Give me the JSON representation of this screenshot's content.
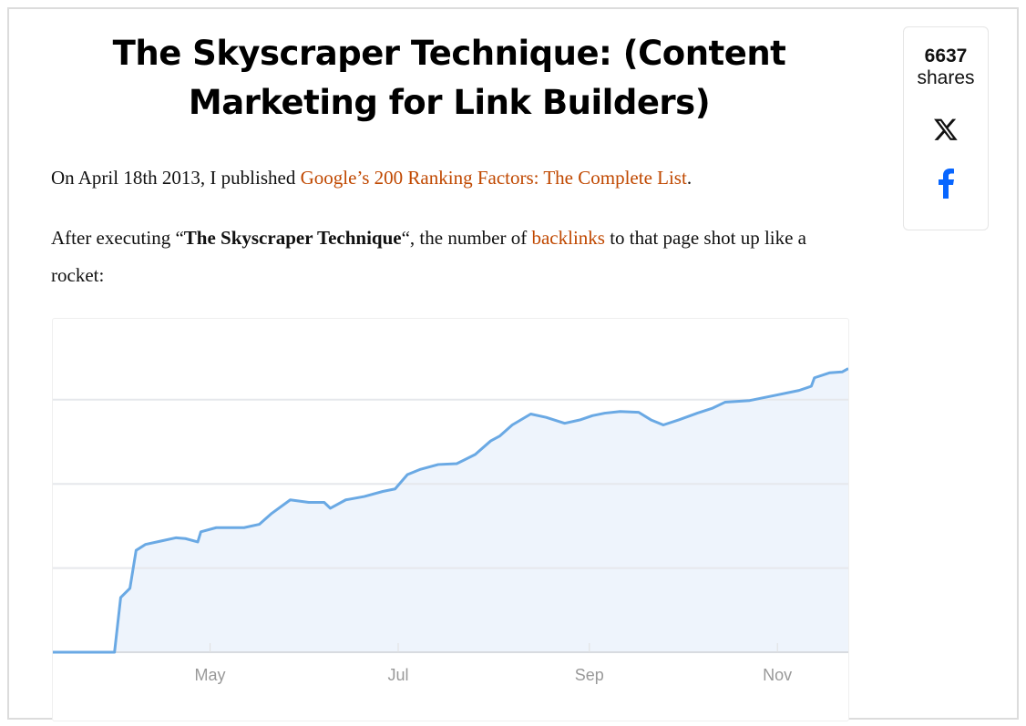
{
  "article": {
    "title": "The Skyscraper Technique: (Content Marketing for Link Builders)",
    "paragraph1": {
      "before": "On April 18th 2013, I published ",
      "link": "Google’s 200 Ranking Factors: The Complete List",
      "after": "."
    },
    "paragraph2": {
      "before": "After executing “",
      "bold": "The Skyscraper Technique",
      "middle": "“, the number of ",
      "link": "backlinks",
      "after": " to that page shot up like a rocket:"
    },
    "link_color": "#c04800"
  },
  "share_box": {
    "count": "6637",
    "label": "shares",
    "icons": [
      "x-twitter-icon",
      "facebook-icon"
    ],
    "facebook_color": "#0866ff"
  },
  "chart_data": {
    "type": "area",
    "title": "",
    "xlabel": "",
    "ylabel": "",
    "x_tick_labels": [
      "May",
      "Jul",
      "Sep",
      "Nov"
    ],
    "x_ticks": [
      "2013-05-01",
      "2013-07-01",
      "2013-09-01",
      "2013-11-01"
    ],
    "xlim": [
      "2013-03-11",
      "2013-11-24"
    ],
    "ylim": [
      0,
      3.95
    ],
    "y_gridlines": [
      1,
      2,
      3
    ],
    "y_tick_labels_shown": false,
    "grid": true,
    "line_color": "#6aa9e4",
    "fill_color": "#eef4fc",
    "series": [
      {
        "x": [
          "2013-03-11",
          "2013-03-31",
          "2013-04-02",
          "2013-04-05",
          "2013-04-07",
          "2013-04-10",
          "2013-04-15",
          "2013-04-20",
          "2013-04-23",
          "2013-04-27",
          "2013-04-28",
          "2013-05-03",
          "2013-05-08",
          "2013-05-12",
          "2013-05-17",
          "2013-05-21",
          "2013-05-27",
          "2013-06-02",
          "2013-06-07",
          "2013-06-09",
          "2013-06-14",
          "2013-06-20",
          "2013-06-26",
          "2013-06-30",
          "2013-07-04",
          "2013-07-08",
          "2013-07-14",
          "2013-07-20",
          "2013-07-26",
          "2013-07-31",
          "2013-08-03",
          "2013-08-07",
          "2013-08-13",
          "2013-08-18",
          "2013-08-24",
          "2013-08-29",
          "2013-09-02",
          "2013-09-06",
          "2013-09-11",
          "2013-09-17",
          "2013-09-21",
          "2013-09-25",
          "2013-09-30",
          "2013-10-06",
          "2013-10-11",
          "2013-10-15",
          "2013-10-23",
          "2013-10-31",
          "2013-11-08",
          "2013-11-12",
          "2013-11-13",
          "2013-11-18",
          "2013-11-22",
          "2013-11-24"
        ],
        "y": [
          0,
          0,
          0.65,
          0.76,
          1.21,
          1.28,
          1.32,
          1.36,
          1.35,
          1.31,
          1.43,
          1.48,
          1.48,
          1.48,
          1.52,
          1.65,
          1.81,
          1.78,
          1.78,
          1.71,
          1.81,
          1.85,
          1.91,
          1.94,
          2.11,
          2.17,
          2.23,
          2.24,
          2.35,
          2.51,
          2.57,
          2.7,
          2.83,
          2.79,
          2.72,
          2.76,
          2.81,
          2.84,
          2.86,
          2.85,
          2.76,
          2.7,
          2.76,
          2.84,
          2.9,
          2.97,
          2.99,
          3.05,
          3.11,
          3.16,
          3.26,
          3.32,
          3.33,
          3.37
        ]
      }
    ]
  }
}
